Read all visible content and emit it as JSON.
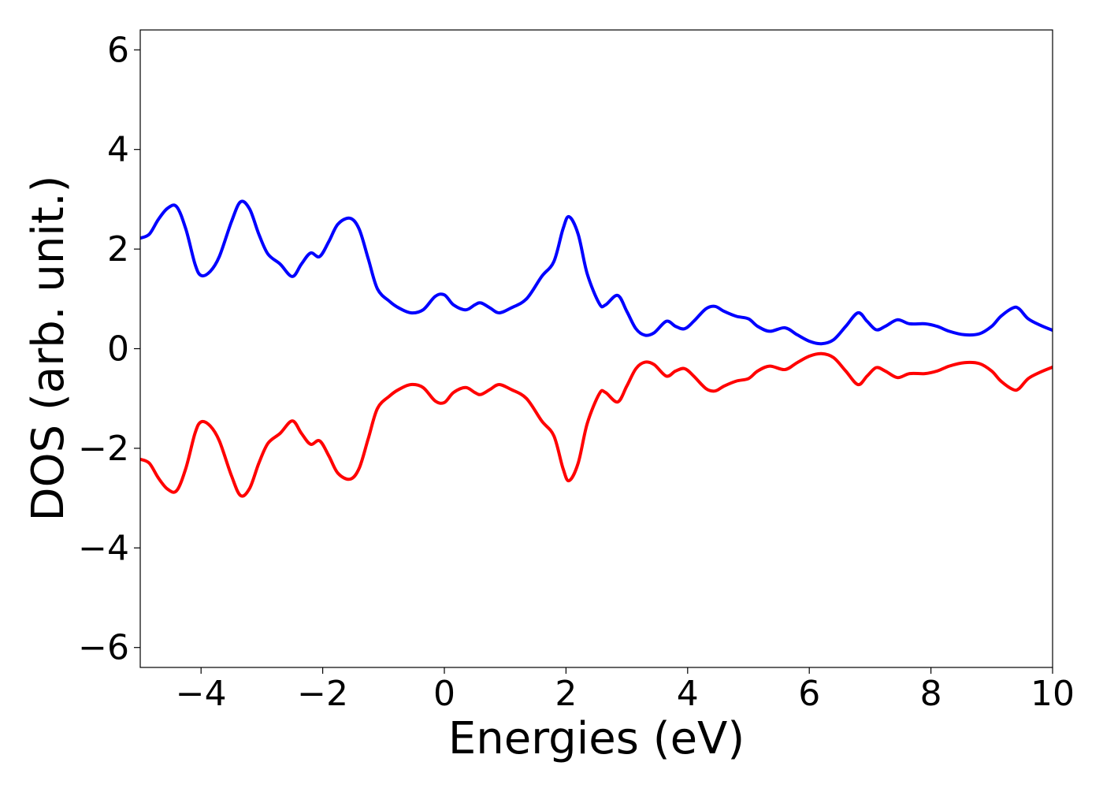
{
  "chart_data": {
    "type": "line",
    "title": "",
    "xlabel": "Energies (eV)",
    "ylabel": "DOS (arb. unit.)",
    "xlim": [
      -5,
      10
    ],
    "ylim": [
      -6.4,
      6.4
    ],
    "xticks": [
      -4,
      -2,
      0,
      2,
      4,
      6,
      8,
      10
    ],
    "yticks": [
      -6,
      -4,
      -2,
      0,
      2,
      4,
      6
    ],
    "xtick_labels": [
      "−4",
      "−2",
      "0",
      "2",
      "4",
      "6",
      "8",
      "10"
    ],
    "ytick_labels": [
      "−6",
      "−4",
      "−2",
      "0",
      "2",
      "4",
      "6"
    ],
    "grid": false,
    "legend": "none",
    "series": [
      {
        "color": "#0000ff",
        "points": [
          [
            -5.0,
            2.22
          ],
          [
            -4.85,
            2.3
          ],
          [
            -4.7,
            2.6
          ],
          [
            -4.55,
            2.82
          ],
          [
            -4.4,
            2.85
          ],
          [
            -4.25,
            2.4
          ],
          [
            -4.1,
            1.7
          ],
          [
            -4.0,
            1.47
          ],
          [
            -3.85,
            1.55
          ],
          [
            -3.7,
            1.85
          ],
          [
            -3.5,
            2.55
          ],
          [
            -3.35,
            2.95
          ],
          [
            -3.2,
            2.8
          ],
          [
            -3.05,
            2.3
          ],
          [
            -2.9,
            1.9
          ],
          [
            -2.7,
            1.7
          ],
          [
            -2.5,
            1.45
          ],
          [
            -2.35,
            1.7
          ],
          [
            -2.2,
            1.92
          ],
          [
            -2.05,
            1.85
          ],
          [
            -1.9,
            2.15
          ],
          [
            -1.75,
            2.5
          ],
          [
            -1.55,
            2.62
          ],
          [
            -1.4,
            2.4
          ],
          [
            -1.25,
            1.8
          ],
          [
            -1.1,
            1.2
          ],
          [
            -0.9,
            0.95
          ],
          [
            -0.75,
            0.82
          ],
          [
            -0.55,
            0.72
          ],
          [
            -0.35,
            0.78
          ],
          [
            -0.15,
            1.05
          ],
          [
            0.0,
            1.08
          ],
          [
            0.15,
            0.88
          ],
          [
            0.35,
            0.78
          ],
          [
            0.5,
            0.88
          ],
          [
            0.6,
            0.92
          ],
          [
            0.75,
            0.82
          ],
          [
            0.9,
            0.72
          ],
          [
            1.1,
            0.82
          ],
          [
            1.35,
            1.0
          ],
          [
            1.6,
            1.45
          ],
          [
            1.8,
            1.75
          ],
          [
            1.95,
            2.4
          ],
          [
            2.05,
            2.65
          ],
          [
            2.2,
            2.3
          ],
          [
            2.35,
            1.5
          ],
          [
            2.55,
            0.9
          ],
          [
            2.65,
            0.88
          ],
          [
            2.85,
            1.07
          ],
          [
            3.0,
            0.75
          ],
          [
            3.15,
            0.4
          ],
          [
            3.3,
            0.27
          ],
          [
            3.45,
            0.32
          ],
          [
            3.65,
            0.55
          ],
          [
            3.8,
            0.45
          ],
          [
            3.95,
            0.4
          ],
          [
            4.1,
            0.55
          ],
          [
            4.3,
            0.8
          ],
          [
            4.45,
            0.85
          ],
          [
            4.6,
            0.75
          ],
          [
            4.8,
            0.65
          ],
          [
            5.0,
            0.6
          ],
          [
            5.15,
            0.45
          ],
          [
            5.35,
            0.35
          ],
          [
            5.6,
            0.42
          ],
          [
            5.8,
            0.28
          ],
          [
            6.0,
            0.15
          ],
          [
            6.2,
            0.1
          ],
          [
            6.4,
            0.18
          ],
          [
            6.6,
            0.45
          ],
          [
            6.8,
            0.72
          ],
          [
            6.95,
            0.55
          ],
          [
            7.1,
            0.38
          ],
          [
            7.25,
            0.45
          ],
          [
            7.45,
            0.58
          ],
          [
            7.65,
            0.5
          ],
          [
            7.9,
            0.5
          ],
          [
            8.1,
            0.45
          ],
          [
            8.3,
            0.35
          ],
          [
            8.55,
            0.28
          ],
          [
            8.8,
            0.3
          ],
          [
            9.0,
            0.45
          ],
          [
            9.15,
            0.65
          ],
          [
            9.35,
            0.82
          ],
          [
            9.45,
            0.8
          ],
          [
            9.6,
            0.6
          ],
          [
            9.8,
            0.47
          ],
          [
            10.0,
            0.37
          ]
        ]
      },
      {
        "color": "#ff0000",
        "points": [
          [
            -5.0,
            -2.22
          ],
          [
            -4.85,
            -2.3
          ],
          [
            -4.7,
            -2.6
          ],
          [
            -4.55,
            -2.82
          ],
          [
            -4.4,
            -2.85
          ],
          [
            -4.25,
            -2.4
          ],
          [
            -4.1,
            -1.7
          ],
          [
            -4.0,
            -1.47
          ],
          [
            -3.85,
            -1.55
          ],
          [
            -3.7,
            -1.85
          ],
          [
            -3.5,
            -2.55
          ],
          [
            -3.35,
            -2.95
          ],
          [
            -3.2,
            -2.8
          ],
          [
            -3.05,
            -2.3
          ],
          [
            -2.9,
            -1.9
          ],
          [
            -2.7,
            -1.7
          ],
          [
            -2.5,
            -1.45
          ],
          [
            -2.35,
            -1.7
          ],
          [
            -2.2,
            -1.92
          ],
          [
            -2.05,
            -1.85
          ],
          [
            -1.9,
            -2.15
          ],
          [
            -1.75,
            -2.5
          ],
          [
            -1.55,
            -2.62
          ],
          [
            -1.4,
            -2.4
          ],
          [
            -1.25,
            -1.8
          ],
          [
            -1.1,
            -1.2
          ],
          [
            -0.9,
            -0.95
          ],
          [
            -0.75,
            -0.82
          ],
          [
            -0.55,
            -0.72
          ],
          [
            -0.35,
            -0.78
          ],
          [
            -0.15,
            -1.05
          ],
          [
            0.0,
            -1.08
          ],
          [
            0.15,
            -0.88
          ],
          [
            0.35,
            -0.78
          ],
          [
            0.5,
            -0.88
          ],
          [
            0.6,
            -0.92
          ],
          [
            0.75,
            -0.82
          ],
          [
            0.9,
            -0.72
          ],
          [
            1.1,
            -0.82
          ],
          [
            1.35,
            -1.0
          ],
          [
            1.6,
            -1.45
          ],
          [
            1.8,
            -1.75
          ],
          [
            1.95,
            -2.4
          ],
          [
            2.05,
            -2.65
          ],
          [
            2.2,
            -2.3
          ],
          [
            2.35,
            -1.5
          ],
          [
            2.55,
            -0.9
          ],
          [
            2.65,
            -0.88
          ],
          [
            2.85,
            -1.07
          ],
          [
            3.0,
            -0.75
          ],
          [
            3.15,
            -0.4
          ],
          [
            3.3,
            -0.27
          ],
          [
            3.45,
            -0.32
          ],
          [
            3.65,
            -0.55
          ],
          [
            3.8,
            -0.45
          ],
          [
            3.95,
            -0.4
          ],
          [
            4.1,
            -0.55
          ],
          [
            4.3,
            -0.8
          ],
          [
            4.45,
            -0.85
          ],
          [
            4.6,
            -0.75
          ],
          [
            4.8,
            -0.65
          ],
          [
            5.0,
            -0.6
          ],
          [
            5.15,
            -0.45
          ],
          [
            5.35,
            -0.35
          ],
          [
            5.6,
            -0.42
          ],
          [
            5.8,
            -0.28
          ],
          [
            6.0,
            -0.15
          ],
          [
            6.2,
            -0.1
          ],
          [
            6.4,
            -0.18
          ],
          [
            6.6,
            -0.45
          ],
          [
            6.8,
            -0.72
          ],
          [
            6.95,
            -0.55
          ],
          [
            7.1,
            -0.38
          ],
          [
            7.25,
            -0.45
          ],
          [
            7.45,
            -0.58
          ],
          [
            7.65,
            -0.5
          ],
          [
            7.9,
            -0.5
          ],
          [
            8.1,
            -0.45
          ],
          [
            8.3,
            -0.35
          ],
          [
            8.55,
            -0.28
          ],
          [
            8.8,
            -0.3
          ],
          [
            9.0,
            -0.45
          ],
          [
            9.15,
            -0.65
          ],
          [
            9.35,
            -0.82
          ],
          [
            9.45,
            -0.8
          ],
          [
            9.6,
            -0.6
          ],
          [
            9.8,
            -0.47
          ],
          [
            10.0,
            -0.37
          ]
        ]
      }
    ]
  }
}
